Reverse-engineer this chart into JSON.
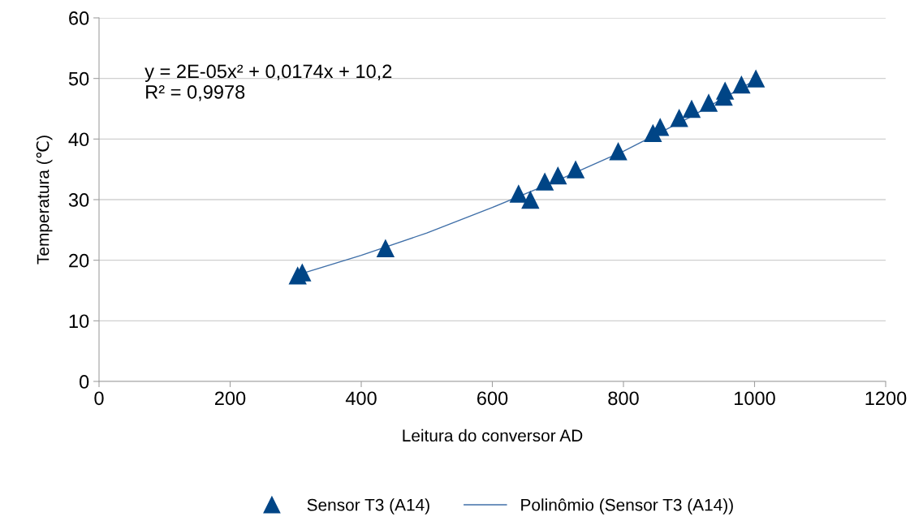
{
  "chart_data": {
    "type": "scatter",
    "xlabel": "Leitura do conversor AD",
    "ylabel": "Temperatura (℃)",
    "xlim": [
      0,
      1200
    ],
    "xticks": [
      0,
      200,
      400,
      600,
      800,
      1000,
      1200
    ],
    "ylim": [
      0,
      60
    ],
    "yticks": [
      0,
      10,
      20,
      30,
      40,
      50,
      60
    ],
    "grid": "y",
    "legend": "bottom",
    "marker": "triangle",
    "annotations": [
      "y = 2E-05x² + 0,0174x + 10,2\nR² = 0,9978"
    ],
    "series": [
      {
        "name": "Sensor T3 (A14)",
        "color": "#004586",
        "x": [
          303,
          310,
          437,
          640,
          658,
          680,
          700,
          727,
          792,
          845,
          856,
          885,
          904,
          930,
          953,
          955,
          980,
          1002
        ],
        "values": [
          17.5,
          18,
          22,
          31,
          30,
          33,
          34,
          35,
          38,
          41,
          42,
          43.5,
          45,
          46,
          47,
          48,
          49,
          50
        ]
      },
      {
        "name": "Polinômio (Sensor T3 (A14))",
        "type": "line",
        "color": "#3f6fa8",
        "marker": "none",
        "line_style": "solid",
        "x": [
          303,
          400,
          500,
          600,
          700,
          800,
          900,
          1002
        ],
        "values": [
          17.6,
          20.8,
          24.5,
          28.7,
          33.2,
          38,
          43.5,
          49.8
        ]
      }
    ]
  }
}
